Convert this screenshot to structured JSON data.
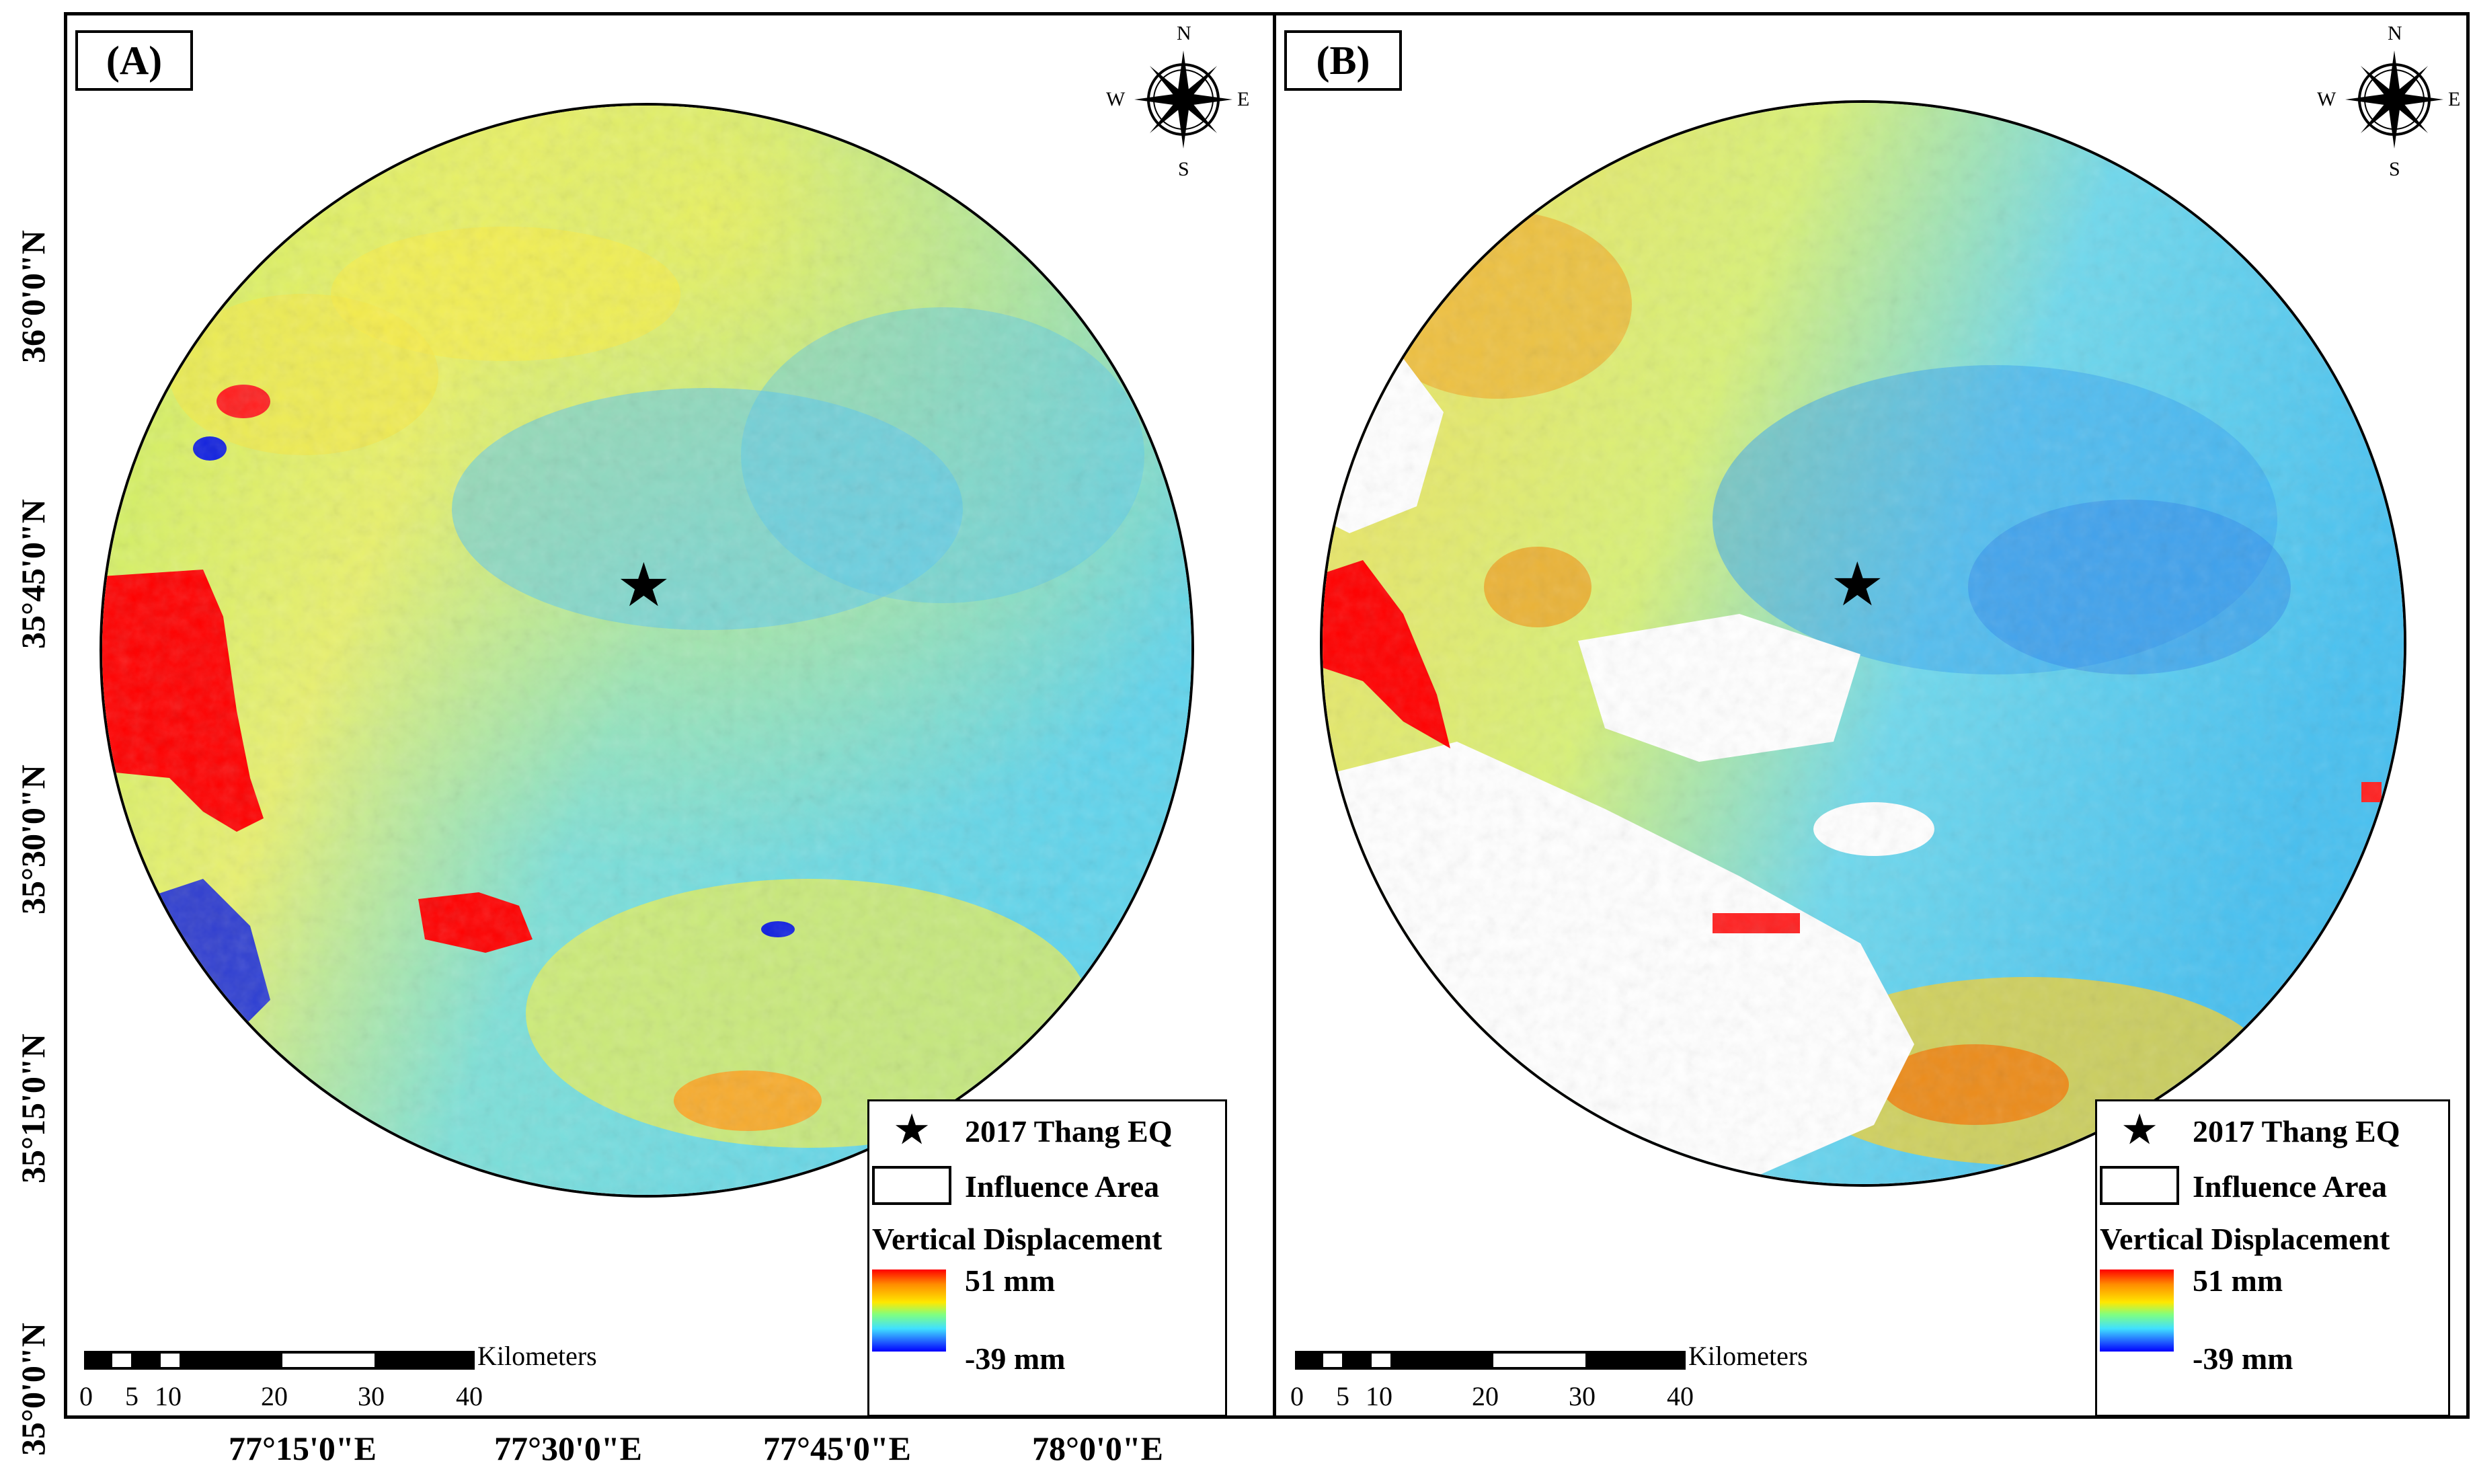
{
  "panels": [
    {
      "label": "(A)",
      "compass": {
        "n": "N",
        "s": "S",
        "e": "E",
        "w": "W"
      },
      "legend": {
        "epicenter_label": "2017 Thang EQ",
        "area_label": "Influence Area",
        "ramp_title": "Vertical Displacement",
        "ramp_max": "51 mm",
        "ramp_min": "-39 mm"
      },
      "scale": {
        "unit": "Kilometers",
        "ticks": [
          "0",
          "5",
          "10",
          "20",
          "30",
          "40"
        ]
      }
    },
    {
      "label": "(B)",
      "compass": {
        "n": "N",
        "s": "S",
        "e": "E",
        "w": "W"
      },
      "legend": {
        "epicenter_label": "2017 Thang EQ",
        "area_label": "Influence Area",
        "ramp_title": "Vertical Displacement",
        "ramp_max": "51 mm",
        "ramp_min": "-39 mm"
      },
      "scale": {
        "unit": "Kilometers",
        "ticks": [
          "0",
          "5",
          "10",
          "20",
          "30",
          "40"
        ]
      }
    }
  ],
  "axes": {
    "latitude_labels": [
      "36°0'0\"N",
      "35°45'0\"N",
      "35°30'0\"N",
      "35°15'0\"N",
      "35°0'0\"N"
    ],
    "longitude_labels": [
      "77°15'0\"E",
      "77°30'0\"E",
      "77°45'0\"E",
      "78°0'0\"E"
    ]
  },
  "colors": {
    "ramp_high": "#ff0000",
    "ramp_mid": "#ffe800",
    "ramp_low": "#0000ff",
    "background_cyan": "#5fd8e8",
    "background_yellow": "#f0f060"
  }
}
